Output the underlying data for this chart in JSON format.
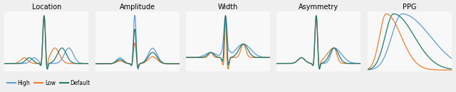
{
  "titles": [
    "Location",
    "Amplitude",
    "Width",
    "Asymmetry",
    "PPG"
  ],
  "colors": {
    "high": "#5b9bd5",
    "low": "#ed7d31",
    "default": "#1f7a6e"
  },
  "legend_labels": [
    "High",
    "Low",
    "Default"
  ],
  "bg_color": "#efefef",
  "panel_bg": "#f8f8f8",
  "figsize": [
    6.4,
    1.3
  ],
  "dpi": 100
}
